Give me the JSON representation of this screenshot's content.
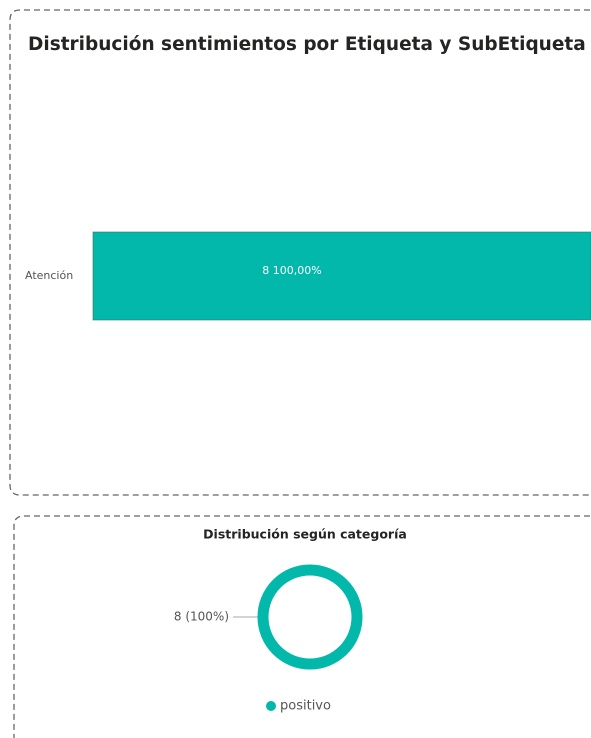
{
  "chart_data": [
    {
      "type": "bar",
      "orientation": "horizontal",
      "stacked_percent": true,
      "title": "Distribución sentimientos por Etiqueta y SubEtiqueta",
      "categories": [
        "Atención"
      ],
      "values": [
        8
      ],
      "value_labels": [
        "8 100,00%"
      ],
      "color": "#01B8AA"
    },
    {
      "type": "donut",
      "title": "Distribución según categoría",
      "categories": [
        "positivo"
      ],
      "values": [
        8
      ],
      "value_labels": [
        "8 (100%)"
      ],
      "colors": [
        "#01B8AA"
      ]
    }
  ]
}
